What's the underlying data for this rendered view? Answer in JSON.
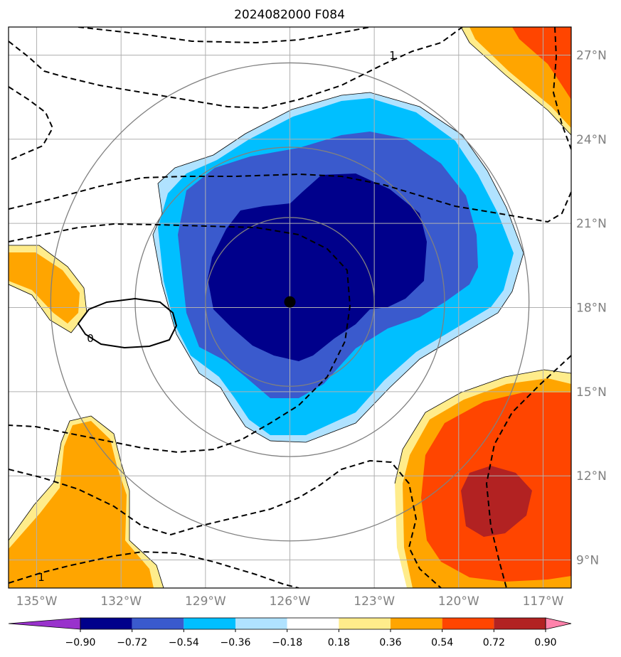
{
  "chart_data": {
    "type": "heatmap",
    "title": "2024082000 F084",
    "xlabel": "",
    "ylabel": "",
    "xlim": [
      -136,
      -116
    ],
    "ylim": [
      8,
      28
    ],
    "grid": true,
    "x_ticks": [
      {
        "value": -135,
        "label": "135°W"
      },
      {
        "value": -132,
        "label": "132°W"
      },
      {
        "value": -129,
        "label": "129°W"
      },
      {
        "value": -126,
        "label": "126°W"
      },
      {
        "value": -123,
        "label": "123°W"
      },
      {
        "value": -120,
        "label": "120°W"
      },
      {
        "value": -117,
        "label": "117°W"
      }
    ],
    "y_ticks": [
      {
        "value": 27,
        "label": "27°N"
      },
      {
        "value": 24,
        "label": "24°N"
      },
      {
        "value": 21,
        "label": "21°N"
      },
      {
        "value": 18,
        "label": "18°N"
      },
      {
        "value": 15,
        "label": "15°N"
      },
      {
        "value": 12,
        "label": "12°N"
      },
      {
        "value": 9,
        "label": "9°N"
      }
    ],
    "center": {
      "lon": -126,
      "lat": 18.2
    },
    "range_rings_deg": [
      3,
      5.5,
      8.5
    ],
    "colorbar": {
      "levels": [
        -0.9,
        -0.72,
        -0.54,
        -0.36,
        -0.18,
        0.18,
        0.36,
        0.54,
        0.72,
        0.9
      ],
      "tick_labels": [
        "−0.90",
        "−0.72",
        "−0.54",
        "−0.36",
        "−0.18",
        "0.18",
        "0.36",
        "0.54",
        "0.72",
        "0.90"
      ],
      "colors": [
        "#9932cc",
        "#00008b",
        "#3a5acd",
        "#00bfff",
        "#b0e2ff",
        "#ffffff",
        "#ffec8b",
        "#ffa500",
        "#ff4500",
        "#b22222",
        "#ff82ab"
      ],
      "extend": "both"
    },
    "contour_labels": [
      {
        "text": "1",
        "lon": -122.5,
        "lat": 27.0
      },
      {
        "text": "1",
        "lon": -135.1,
        "lat": 8.5
      },
      {
        "text": "0",
        "lon": -132.2,
        "lat": 17.5
      }
    ]
  }
}
